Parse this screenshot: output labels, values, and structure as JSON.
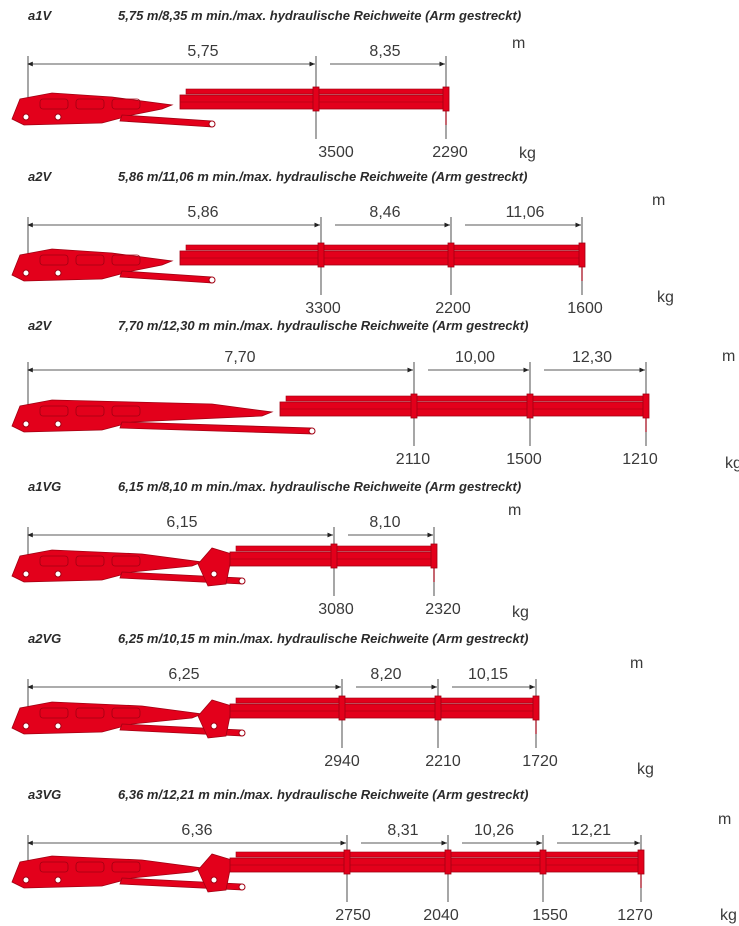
{
  "colors": {
    "crane": "#e3001b",
    "crane_dark": "#a10012",
    "line": "#222222",
    "text": "#2b2b2b"
  },
  "units": {
    "length": "m",
    "weight": "kg"
  },
  "sections": [
    {
      "code": "a1V",
      "title": "5,75 m/8,35 m min./max. hydraulische Reichweite (Arm gestreckt)",
      "reach_labels": [
        "5,75",
        "8,35"
      ],
      "loads": [
        "3500",
        "2290"
      ]
    },
    {
      "code": "a2V",
      "title": "5,86 m/11,06 m min./max. hydraulische Reichweite (Arm gestreckt)",
      "reach_labels": [
        "5,86",
        "8,46",
        "11,06"
      ],
      "loads": [
        "3300",
        "2200",
        "1600"
      ]
    },
    {
      "code": "a2V",
      "title": "7,70 m/12,30 m min./max. hydraulische Reichweite (Arm gestreckt)",
      "reach_labels": [
        "7,70",
        "10,00",
        "12,30"
      ],
      "loads": [
        "2110",
        "1500",
        "1210"
      ]
    },
    {
      "code": "a1VG",
      "title": "6,15 m/8,10 m min./max. hydraulische Reichweite (Arm gestreckt)",
      "reach_labels": [
        "6,15",
        "8,10"
      ],
      "loads": [
        "3080",
        "2320"
      ]
    },
    {
      "code": "a2VG",
      "title": "6,25 m/10,15 m min./max. hydraulische Reichweite (Arm gestreckt)",
      "reach_labels": [
        "6,25",
        "8,20",
        "10,15"
      ],
      "loads": [
        "2940",
        "2210",
        "1720"
      ]
    },
    {
      "code": "a3VG",
      "title": "6,36 m/12,21 m min./max. hydraulische Reichweite (Arm gestreckt)",
      "reach_labels": [
        "6,36",
        "8,31",
        "10,26",
        "12,21"
      ],
      "loads": [
        "2750",
        "2040",
        "1550",
        "1270"
      ]
    }
  ]
}
